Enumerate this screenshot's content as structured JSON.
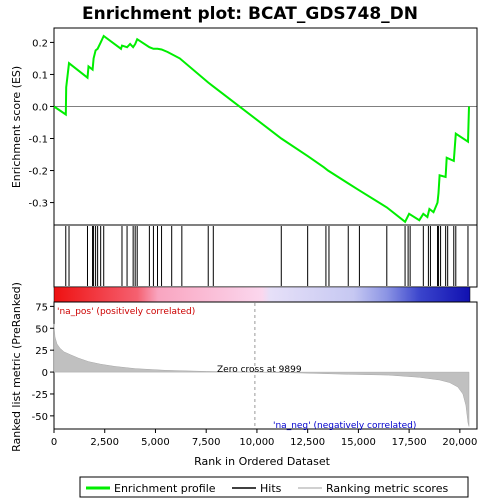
{
  "chart_data": {
    "type": "line",
    "title": "Enrichment plot: BCAT_GDS748_DN",
    "top_panel": {
      "ylabel": "Enrichment score (ES)",
      "ylim": [
        -0.37,
        0.245
      ],
      "yticks": [
        0.2,
        0.1,
        0.0,
        -0.1,
        -0.2,
        -0.3
      ],
      "ytick_labels": [
        "0.2",
        "0.1",
        "0.0",
        "-0.1",
        "-0.2",
        "-0.3"
      ],
      "series": [
        {
          "name": "Enrichment profile",
          "color": "#00ee00",
          "x": [
            0,
            580,
            600,
            740,
            1650,
            1700,
            1900,
            1950,
            2050,
            2150,
            2300,
            2450,
            3300,
            3350,
            3600,
            3750,
            3900,
            4000,
            4100,
            4700,
            4900,
            5100,
            5300,
            5600,
            6200,
            7600,
            7800,
            11200,
            12500,
            13300,
            13500,
            14500,
            15000,
            16400,
            17300,
            17500,
            18000,
            18200,
            18400,
            18500,
            18700,
            18900,
            18950,
            19000,
            19300,
            19350,
            19700,
            19800,
            20400,
            20450
          ],
          "y": [
            0.0,
            -0.025,
            0.06,
            0.135,
            0.09,
            0.125,
            0.115,
            0.15,
            0.175,
            0.18,
            0.2,
            0.22,
            0.18,
            0.19,
            0.185,
            0.195,
            0.185,
            0.195,
            0.21,
            0.185,
            0.18,
            0.18,
            0.178,
            0.17,
            0.15,
            0.075,
            0.065,
            -0.1,
            -0.155,
            -0.19,
            -0.2,
            -0.24,
            -0.26,
            -0.315,
            -0.36,
            -0.335,
            -0.355,
            -0.335,
            -0.345,
            -0.32,
            -0.33,
            -0.3,
            -0.27,
            -0.215,
            -0.22,
            -0.16,
            -0.17,
            -0.085,
            -0.11,
            0.0
          ]
        }
      ]
    },
    "hits_panel": {
      "hit_positions": [
        580,
        740,
        1650,
        1900,
        1950,
        2050,
        2150,
        2300,
        2450,
        3350,
        3600,
        3900,
        4000,
        4100,
        4700,
        4900,
        5100,
        5300,
        5800,
        6300,
        7600,
        7850,
        11200,
        12500,
        13400,
        13550,
        14500,
        15050,
        16400,
        17300,
        17450,
        17550,
        18200,
        18450,
        18550,
        18900,
        18950,
        19050,
        19300,
        19400,
        19700,
        19800,
        20400
      ]
    },
    "bottom_panel": {
      "ylabel": "Ranked list metric (PreRanked)",
      "xlabel": "Rank in Ordered Dataset",
      "ylim": [
        -65,
        80
      ],
      "yticks": [
        75,
        50,
        25,
        0,
        -25,
        -50
      ],
      "ytick_labels": [
        "75",
        "50",
        "25",
        "0",
        "-25",
        "-50"
      ],
      "metric_x": [
        0,
        50,
        150,
        300,
        500,
        800,
        1200,
        1700,
        2300,
        3000,
        4000,
        5500,
        7500,
        9899,
        12000,
        14500,
        16500,
        18000,
        19000,
        19500,
        19900,
        20150,
        20300,
        20400,
        20450
      ],
      "metric_y": [
        55,
        40,
        32,
        27,
        23,
        20,
        16,
        12,
        9,
        6.5,
        4,
        2,
        0.8,
        0,
        -1,
        -2.5,
        -3.5,
        -6,
        -9,
        -12,
        -17,
        -25,
        -38,
        -58,
        -62
      ],
      "zero_cross_label": "Zero cross at 9899",
      "zero_cross_x": 9899,
      "pos_label": "'na_pos' (positively correlated)",
      "neg_label": "'na_neg' (negatively correlated)"
    },
    "xlim": [
      0,
      20500
    ],
    "xticks": [
      0,
      2500,
      5000,
      7500,
      10000,
      12500,
      15000,
      17500,
      20000
    ],
    "xtick_labels": [
      "0",
      "2,500",
      "5,000",
      "7,500",
      "10,000",
      "12,500",
      "15,000",
      "17,500",
      "20,000"
    ],
    "legend": {
      "placement": "bottom",
      "items": [
        {
          "label": "Enrichment profile",
          "color": "#00ee00"
        },
        {
          "label": "Hits",
          "color": "#000000"
        },
        {
          "label": "Ranking metric scores",
          "color": "#c0c0c0"
        }
      ]
    },
    "colors": {
      "profile": "#00ee00",
      "metric_fill": "#c0c0c0",
      "pos_text": "#cc0000",
      "neg_text": "#0000cc",
      "zero_line": "#999999"
    }
  }
}
